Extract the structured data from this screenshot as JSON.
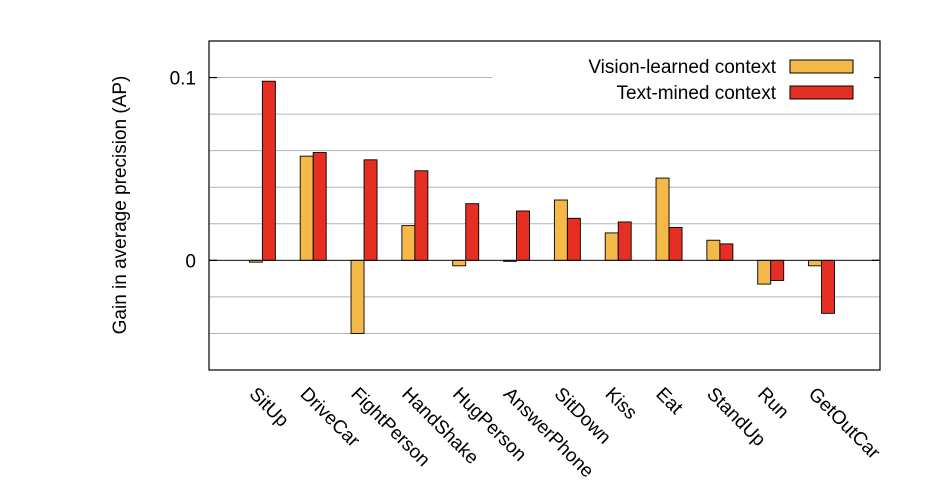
{
  "chart_data": {
    "type": "bar",
    "title": "",
    "xlabel": "",
    "ylabel": "Gain in average precision (AP)",
    "ylim": [
      -0.06,
      0.12
    ],
    "yticks": [
      {
        "value": 0.1,
        "label": "0.1"
      },
      {
        "value": 0,
        "label": "0"
      }
    ],
    "ygrid_step": 0.02,
    "grid": true,
    "legend_position": "top-right",
    "categories": [
      "SitUp",
      "DriveCar",
      "FightPerson",
      "HandShake",
      "HugPerson",
      "AnswerPhone",
      "SitDown",
      "Kiss",
      "Eat",
      "StandUp",
      "Run",
      "GetOutCar"
    ],
    "series": [
      {
        "name": "Vision-learned context",
        "color": "#f5b94a",
        "values": [
          -0.001,
          0.057,
          -0.04,
          0.019,
          -0.003,
          -0.0005,
          0.033,
          0.015,
          0.045,
          0.011,
          -0.013,
          -0.003
        ]
      },
      {
        "name": "Text-mined context",
        "color": "#e42f22",
        "values": [
          0.098,
          0.059,
          0.055,
          0.049,
          0.031,
          0.027,
          0.023,
          0.021,
          0.018,
          0.009,
          -0.011,
          -0.029
        ]
      }
    ]
  }
}
